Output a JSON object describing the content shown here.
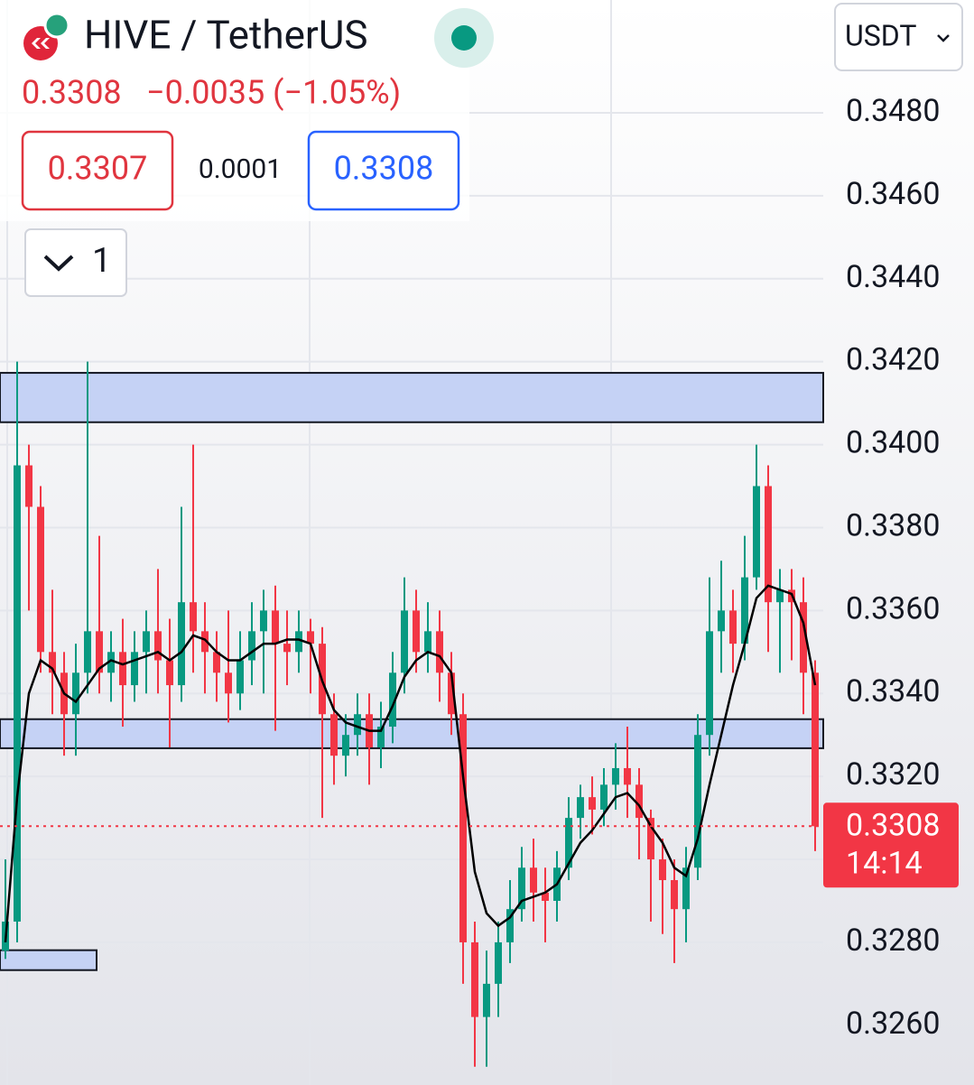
{
  "header": {
    "title": "HIVE / TetherUS",
    "last": 0.3308,
    "change": "−0.0035 (−1.05%)",
    "bid": 0.3307,
    "spread": 0.0001,
    "ask": 0.3308,
    "indicators": 1,
    "currency": "USDT"
  },
  "chart_data": {
    "type": "candlestick",
    "ylim": [
      0.32456,
      0.35072
    ],
    "yticks": [
      {
        "value": 0.348,
        "label": "0.3480"
      },
      {
        "value": 0.346,
        "label": "0.3460"
      },
      {
        "value": 0.344,
        "label": "0.3440"
      },
      {
        "value": 0.342,
        "label": "0.3420"
      },
      {
        "value": 0.34,
        "label": "0.3400"
      },
      {
        "value": 0.338,
        "label": "0.3380"
      },
      {
        "value": 0.336,
        "label": "0.3360"
      },
      {
        "value": 0.334,
        "label": "0.3340"
      },
      {
        "value": 0.332,
        "label": "0.3320"
      },
      {
        "value": 0.33,
        "label": "0.3300"
      },
      {
        "value": 0.328,
        "label": "0.3280"
      },
      {
        "value": 0.326,
        "label": "0.3260"
      }
    ],
    "grid": true,
    "up_color": "#089981",
    "down_color": "#f23645",
    "open": [
      0.3278,
      0.3285,
      0.3395,
      0.3385,
      0.335,
      0.3345,
      0.3335,
      0.3345,
      0.3355,
      0.3345,
      0.335,
      0.3342,
      0.335,
      0.3355,
      0.3348,
      0.3342,
      0.3362,
      0.3355,
      0.335,
      0.3345,
      0.334,
      0.3348,
      0.3355,
      0.336,
      0.3352,
      0.335,
      0.3355,
      0.3352,
      0.3335,
      0.3325,
      0.333,
      0.3335,
      0.3327,
      0.3332,
      0.3345,
      0.336,
      0.335,
      0.3355,
      0.3345,
      0.3335,
      0.328,
      0.3262,
      0.327,
      0.328,
      0.3288,
      0.3298,
      0.3292,
      0.329,
      0.3298,
      0.331,
      0.3315,
      0.3312,
      0.3318,
      0.3322,
      0.3318,
      0.331,
      0.33,
      0.3295,
      0.3288,
      0.3298,
      0.333,
      0.3355,
      0.336,
      0.3352,
      0.3368,
      0.339,
      0.3362,
      0.3365,
      0.3362,
      0.3345
    ],
    "high": [
      0.33,
      0.342,
      0.34,
      0.339,
      0.3365,
      0.335,
      0.3352,
      0.342,
      0.3378,
      0.3355,
      0.3358,
      0.3355,
      0.336,
      0.337,
      0.3358,
      0.3385,
      0.34,
      0.3362,
      0.3355,
      0.336,
      0.3355,
      0.3362,
      0.3365,
      0.3366,
      0.336,
      0.336,
      0.3358,
      0.3356,
      0.334,
      0.3335,
      0.334,
      0.334,
      0.3338,
      0.335,
      0.3368,
      0.3365,
      0.3362,
      0.336,
      0.335,
      0.334,
      0.3285,
      0.3278,
      0.3285,
      0.3295,
      0.3303,
      0.3305,
      0.3298,
      0.3302,
      0.3315,
      0.3318,
      0.332,
      0.3322,
      0.3328,
      0.3332,
      0.3322,
      0.3312,
      0.3305,
      0.33,
      0.3303,
      0.3335,
      0.3368,
      0.3372,
      0.3365,
      0.3378,
      0.34,
      0.3395,
      0.337,
      0.337,
      0.3368,
      0.3348
    ],
    "low": [
      0.3276,
      0.328,
      0.336,
      0.3345,
      0.3335,
      0.3325,
      0.3325,
      0.334,
      0.334,
      0.3338,
      0.3332,
      0.3338,
      0.334,
      0.334,
      0.3327,
      0.3338,
      0.3345,
      0.334,
      0.3338,
      0.3333,
      0.3336,
      0.3342,
      0.334,
      0.3331,
      0.3342,
      0.3345,
      0.334,
      0.331,
      0.3318,
      0.332,
      0.3325,
      0.3318,
      0.3322,
      0.3328,
      0.334,
      0.3345,
      0.3345,
      0.3338,
      0.333,
      0.327,
      0.325,
      0.325,
      0.3262,
      0.3275,
      0.3285,
      0.3285,
      0.328,
      0.3285,
      0.3295,
      0.3305,
      0.3306,
      0.3308,
      0.3312,
      0.331,
      0.33,
      0.3285,
      0.3282,
      0.3275,
      0.328,
      0.3295,
      0.3325,
      0.3345,
      0.3345,
      0.3348,
      0.3365,
      0.335,
      0.3345,
      0.3348,
      0.3335,
      0.3302
    ],
    "close": [
      0.3285,
      0.3395,
      0.3385,
      0.335,
      0.3345,
      0.3335,
      0.3345,
      0.3355,
      0.3345,
      0.335,
      0.3342,
      0.335,
      0.3355,
      0.3348,
      0.3342,
      0.3362,
      0.3355,
      0.335,
      0.3345,
      0.334,
      0.3348,
      0.3355,
      0.336,
      0.3352,
      0.335,
      0.3355,
      0.3352,
      0.3335,
      0.3325,
      0.333,
      0.3335,
      0.3327,
      0.3332,
      0.3345,
      0.336,
      0.335,
      0.3355,
      0.3345,
      0.3335,
      0.328,
      0.3262,
      0.327,
      0.328,
      0.3288,
      0.3298,
      0.3292,
      0.329,
      0.3298,
      0.331,
      0.3315,
      0.3312,
      0.3318,
      0.3322,
      0.3318,
      0.331,
      0.33,
      0.3295,
      0.3288,
      0.3298,
      0.333,
      0.3355,
      0.336,
      0.3352,
      0.3368,
      0.339,
      0.3362,
      0.3365,
      0.3362,
      0.3345,
      0.3308
    ],
    "overlays": [
      {
        "color": "#000000",
        "values": [
          0.328,
          0.3315,
          0.334,
          0.3348,
          0.3346,
          0.334,
          0.3338,
          0.3342,
          0.3346,
          0.3348,
          0.3347,
          0.3348,
          0.3349,
          0.335,
          0.3348,
          0.335,
          0.3354,
          0.3353,
          0.335,
          0.3348,
          0.3348,
          0.335,
          0.3352,
          0.3352,
          0.3353,
          0.3353,
          0.3352,
          0.3343,
          0.3336,
          0.3333,
          0.3332,
          0.3331,
          0.3331,
          0.3337,
          0.3344,
          0.3348,
          0.335,
          0.3349,
          0.3345,
          0.332,
          0.3297,
          0.3287,
          0.3284,
          0.3286,
          0.329,
          0.3291,
          0.3292,
          0.3294,
          0.3299,
          0.3304,
          0.3307,
          0.3311,
          0.3315,
          0.3316,
          0.3313,
          0.3308,
          0.3304,
          0.3298,
          0.3296,
          0.3305,
          0.3318,
          0.333,
          0.3342,
          0.3352,
          0.3363,
          0.3366,
          0.3365,
          0.3364,
          0.3357,
          0.3342
        ]
      }
    ],
    "zones": [
      {
        "low": 0.34054,
        "high": 0.34173,
        "color": "#c5d2f5"
      },
      {
        "low": 0.33268,
        "high": 0.33338,
        "color": "#c5d2f5"
      },
      {
        "low": 0.32733,
        "high": 0.32781,
        "color": "#c5d2f5"
      }
    ],
    "last_price": 0.3308,
    "countdown": "14:14"
  }
}
